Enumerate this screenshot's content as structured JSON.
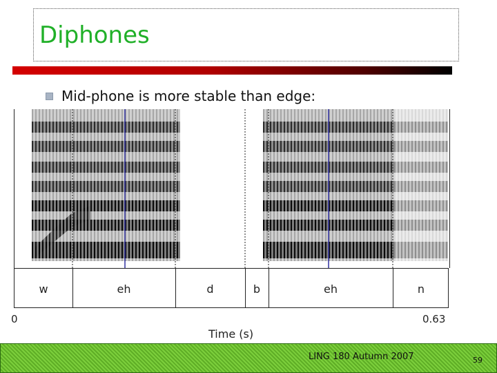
{
  "slide": {
    "title": "Diphones",
    "bullet": "Mid-phone is more stable than edge:"
  },
  "figure": {
    "phones": [
      "w",
      "eh",
      "d",
      "b",
      "eh",
      "n"
    ],
    "time_start": "0",
    "time_end": "0.63",
    "xlabel": "Time (s)"
  },
  "footer": {
    "course": "LING 180 Autumn 2007",
    "page": "59"
  },
  "colors": {
    "title": "#20b028",
    "rule_start": "#d40000",
    "footer_green": "#7ccf3c",
    "marker_line": "#3030a0"
  }
}
